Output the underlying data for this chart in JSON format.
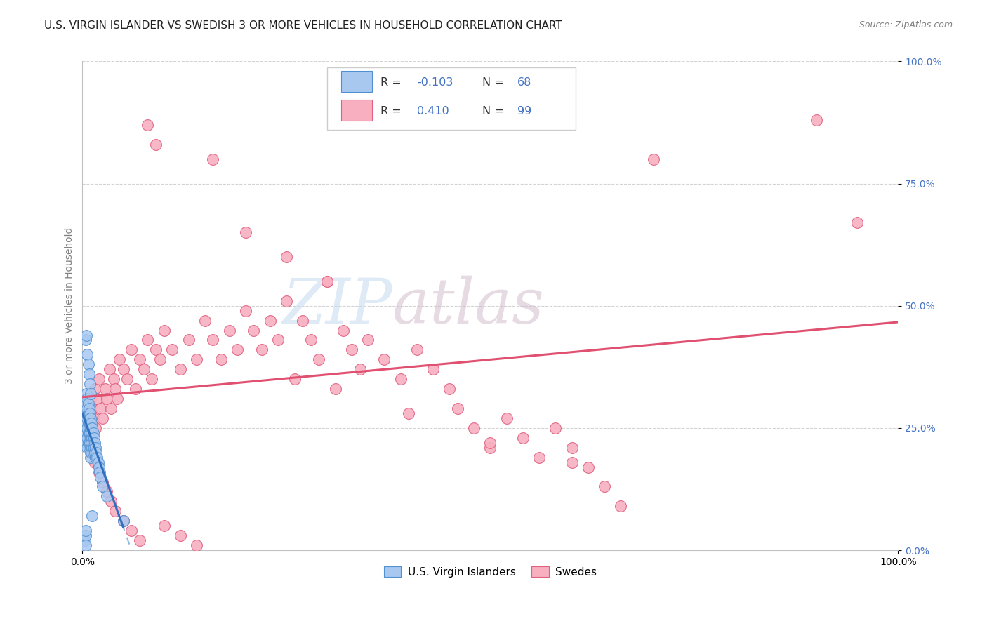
{
  "title": "U.S. VIRGIN ISLANDER VS SWEDISH 3 OR MORE VEHICLES IN HOUSEHOLD CORRELATION CHART",
  "source": "Source: ZipAtlas.com",
  "ylabel": "3 or more Vehicles in Household",
  "xmin": 0.0,
  "xmax": 1.0,
  "ymin": 0.0,
  "ymax": 1.0,
  "yticks": [
    0.0,
    0.25,
    0.5,
    0.75,
    1.0
  ],
  "ytick_labels": [
    "0.0%",
    "25.0%",
    "50.0%",
    "75.0%",
    "100.0%"
  ],
  "blue_R": -0.103,
  "blue_N": 68,
  "pink_R": 0.41,
  "pink_N": 99,
  "blue_color": "#A8C8F0",
  "pink_color": "#F8B0C0",
  "blue_edge_color": "#5090D0",
  "pink_edge_color": "#E06080",
  "blue_line_color": "#3070C0",
  "pink_line_color": "#E05070",
  "blue_dash_color": "#90B8E8",
  "legend_label_blue": "U.S. Virgin Islanders",
  "legend_label_pink": "Swedes",
  "watermark_zip": "ZIP",
  "watermark_atlas": "atlas",
  "title_fontsize": 11,
  "label_fontsize": 10,
  "tick_fontsize": 10,
  "blue_points_x": [
    0.003,
    0.004,
    0.004,
    0.004,
    0.005,
    0.005,
    0.005,
    0.005,
    0.005,
    0.005,
    0.006,
    0.006,
    0.006,
    0.006,
    0.006,
    0.006,
    0.007,
    0.007,
    0.007,
    0.007,
    0.007,
    0.008,
    0.008,
    0.008,
    0.008,
    0.008,
    0.009,
    0.009,
    0.009,
    0.009,
    0.01,
    0.01,
    0.01,
    0.01,
    0.01,
    0.011,
    0.011,
    0.011,
    0.011,
    0.012,
    0.012,
    0.012,
    0.013,
    0.013,
    0.013,
    0.014,
    0.014,
    0.015,
    0.015,
    0.016,
    0.016,
    0.017,
    0.018,
    0.019,
    0.02,
    0.021,
    0.022,
    0.025,
    0.03,
    0.004,
    0.005,
    0.006,
    0.007,
    0.008,
    0.009,
    0.01,
    0.012,
    0.05
  ],
  "blue_points_y": [
    0.02,
    0.03,
    0.04,
    0.01,
    0.28,
    0.3,
    0.32,
    0.26,
    0.24,
    0.22,
    0.29,
    0.31,
    0.27,
    0.25,
    0.23,
    0.21,
    0.3,
    0.28,
    0.26,
    0.24,
    0.22,
    0.29,
    0.27,
    0.25,
    0.23,
    0.21,
    0.28,
    0.26,
    0.24,
    0.22,
    0.27,
    0.25,
    0.23,
    0.21,
    0.19,
    0.26,
    0.24,
    0.22,
    0.2,
    0.25,
    0.23,
    0.21,
    0.24,
    0.22,
    0.2,
    0.23,
    0.21,
    0.22,
    0.2,
    0.21,
    0.19,
    0.2,
    0.19,
    0.18,
    0.17,
    0.16,
    0.15,
    0.13,
    0.11,
    0.43,
    0.44,
    0.4,
    0.38,
    0.36,
    0.34,
    0.32,
    0.07,
    0.06
  ],
  "pink_points_x": [
    0.005,
    0.007,
    0.008,
    0.009,
    0.01,
    0.012,
    0.013,
    0.015,
    0.016,
    0.018,
    0.02,
    0.022,
    0.025,
    0.028,
    0.03,
    0.033,
    0.035,
    0.038,
    0.04,
    0.043,
    0.045,
    0.05,
    0.055,
    0.06,
    0.065,
    0.07,
    0.075,
    0.08,
    0.085,
    0.09,
    0.095,
    0.1,
    0.11,
    0.12,
    0.13,
    0.14,
    0.15,
    0.16,
    0.17,
    0.18,
    0.19,
    0.2,
    0.21,
    0.22,
    0.23,
    0.24,
    0.25,
    0.26,
    0.27,
    0.28,
    0.29,
    0.3,
    0.31,
    0.32,
    0.33,
    0.34,
    0.35,
    0.37,
    0.39,
    0.41,
    0.43,
    0.45,
    0.46,
    0.48,
    0.5,
    0.52,
    0.54,
    0.56,
    0.58,
    0.6,
    0.62,
    0.64,
    0.66,
    0.007,
    0.01,
    0.015,
    0.02,
    0.025,
    0.03,
    0.035,
    0.04,
    0.05,
    0.06,
    0.07,
    0.08,
    0.09,
    0.1,
    0.12,
    0.14,
    0.16,
    0.2,
    0.25,
    0.3,
    0.4,
    0.5,
    0.6,
    0.7,
    0.9,
    0.95
  ],
  "pink_points_y": [
    0.28,
    0.26,
    0.3,
    0.24,
    0.31,
    0.29,
    0.27,
    0.33,
    0.25,
    0.31,
    0.35,
    0.29,
    0.27,
    0.33,
    0.31,
    0.37,
    0.29,
    0.35,
    0.33,
    0.31,
    0.39,
    0.37,
    0.35,
    0.41,
    0.33,
    0.39,
    0.37,
    0.43,
    0.35,
    0.41,
    0.39,
    0.45,
    0.41,
    0.37,
    0.43,
    0.39,
    0.47,
    0.43,
    0.39,
    0.45,
    0.41,
    0.49,
    0.45,
    0.41,
    0.47,
    0.43,
    0.51,
    0.35,
    0.47,
    0.43,
    0.39,
    0.55,
    0.33,
    0.45,
    0.41,
    0.37,
    0.43,
    0.39,
    0.35,
    0.41,
    0.37,
    0.33,
    0.29,
    0.25,
    0.21,
    0.27,
    0.23,
    0.19,
    0.25,
    0.21,
    0.17,
    0.13,
    0.09,
    0.22,
    0.2,
    0.18,
    0.16,
    0.14,
    0.12,
    0.1,
    0.08,
    0.06,
    0.04,
    0.02,
    0.87,
    0.83,
    0.05,
    0.03,
    0.01,
    0.8,
    0.65,
    0.6,
    0.55,
    0.28,
    0.22,
    0.18,
    0.8,
    0.88,
    0.67
  ]
}
